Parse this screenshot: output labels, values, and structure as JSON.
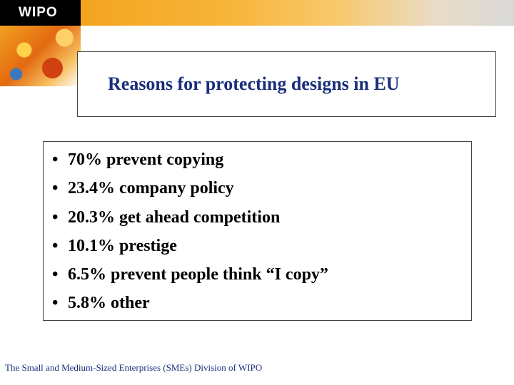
{
  "header": {
    "logo_text": "WIPO"
  },
  "title": "Reasons for protecting designs in EU",
  "bullets": [
    {
      "mark": "•",
      "text": "70% prevent copying"
    },
    {
      "mark": "•",
      "text": "23.4% company policy"
    },
    {
      "mark": "•",
      "text": "20.3% get ahead competition"
    },
    {
      "mark": "•",
      "text": "10.1% prestige"
    },
    {
      "mark": "•",
      "text": "6.5% prevent people think “I copy”"
    },
    {
      "mark": "•",
      "text": "5.8% other"
    }
  ],
  "footer": "The Small and Medium-Sized Enterprises (SMEs) Division of WIPO",
  "colors": {
    "title": "#1a2f7a",
    "banner_accent": "#f39a12",
    "logo_background": "#000000"
  }
}
